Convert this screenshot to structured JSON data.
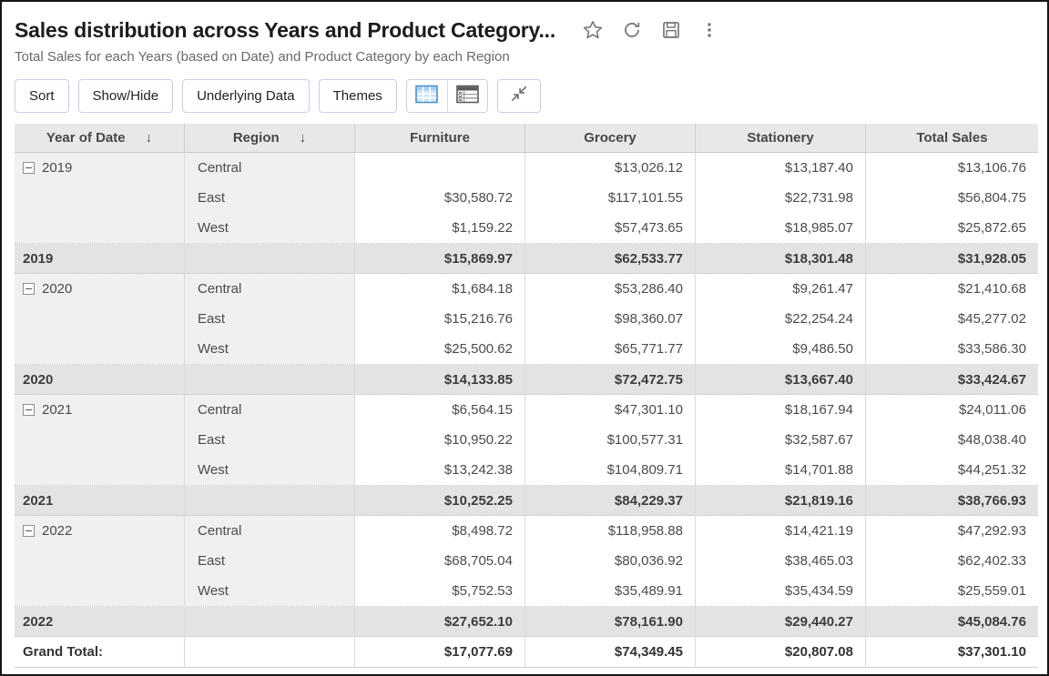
{
  "page": {
    "title": "Sales distribution across Years and Product Category...",
    "subtitle": "Total Sales for each Years (based on Date) and Product Category by each Region"
  },
  "header_icons": [
    {
      "name": "star-icon"
    },
    {
      "name": "refresh-icon"
    },
    {
      "name": "save-icon"
    },
    {
      "name": "more-vertical-icon"
    }
  ],
  "toolbar": {
    "buttons": [
      "Sort",
      "Show/Hide",
      "Underlying Data",
      "Themes"
    ],
    "view_icons": [
      "table-view-icon",
      "tabular-view-icon"
    ],
    "collapse_icon": "collapse-icon"
  },
  "colors": {
    "accent_blue": "#5b9bd3",
    "toolbar_button_border": "#c7cfe9",
    "header_row_bg": "#e8e8e8",
    "subtotal_row_bg": "#e3e3e3",
    "row_label_bg": "#f0f0f0"
  },
  "table": {
    "columns": [
      {
        "label": "Year of Date",
        "sort": "↓"
      },
      {
        "label": "Region",
        "sort": "↓"
      },
      {
        "label": "Furniture"
      },
      {
        "label": "Grocery"
      },
      {
        "label": "Stationery"
      },
      {
        "label": "Total Sales"
      }
    ],
    "collapse_glyph": "minus-box-icon",
    "groups": [
      {
        "year": "2019",
        "regions": [
          "Central",
          "East",
          "West"
        ],
        "furniture": [
          "",
          "$30,580.72",
          "$1,159.22"
        ],
        "grocery": [
          "$13,026.12",
          "$117,101.55",
          "$57,473.65"
        ],
        "stationery": [
          "$13,187.40",
          "$22,731.98",
          "$18,985.07"
        ],
        "total_sales": [
          "$13,106.76",
          "$56,804.75",
          "$25,872.65"
        ],
        "subtotal": {
          "label": "2019",
          "furniture": "$15,869.97",
          "grocery": "$62,533.77",
          "stationery": "$18,301.48",
          "total_sales": "$31,928.05"
        }
      },
      {
        "year": "2020",
        "regions": [
          "Central",
          "East",
          "West"
        ],
        "furniture": [
          "$1,684.18",
          "$15,216.76",
          "$25,500.62"
        ],
        "grocery": [
          "$53,286.40",
          "$98,360.07",
          "$65,771.77"
        ],
        "stationery": [
          "$9,261.47",
          "$22,254.24",
          "$9,486.50"
        ],
        "total_sales": [
          "$21,410.68",
          "$45,277.02",
          "$33,586.30"
        ],
        "subtotal": {
          "label": "2020",
          "furniture": "$14,133.85",
          "grocery": "$72,472.75",
          "stationery": "$13,667.40",
          "total_sales": "$33,424.67"
        }
      },
      {
        "year": "2021",
        "regions": [
          "Central",
          "East",
          "West"
        ],
        "furniture": [
          "$6,564.15",
          "$10,950.22",
          "$13,242.38"
        ],
        "grocery": [
          "$47,301.10",
          "$100,577.31",
          "$104,809.71"
        ],
        "stationery": [
          "$18,167.94",
          "$32,587.67",
          "$14,701.88"
        ],
        "total_sales": [
          "$24,011.06",
          "$48,038.40",
          "$44,251.32"
        ],
        "subtotal": {
          "label": "2021",
          "furniture": "$10,252.25",
          "grocery": "$84,229.37",
          "stationery": "$21,819.16",
          "total_sales": "$38,766.93"
        }
      },
      {
        "year": "2022",
        "regions": [
          "Central",
          "East",
          "West"
        ],
        "furniture": [
          "$8,498.72",
          "$68,705.04",
          "$5,752.53"
        ],
        "grocery": [
          "$118,958.88",
          "$80,036.92",
          "$35,489.91"
        ],
        "stationery": [
          "$14,421.19",
          "$38,465.03",
          "$35,434.59"
        ],
        "total_sales": [
          "$47,292.93",
          "$62,402.33",
          "$25,559.01"
        ],
        "subtotal": {
          "label": "2022",
          "furniture": "$27,652.10",
          "grocery": "$78,161.90",
          "stationery": "$29,440.27",
          "total_sales": "$45,084.76"
        }
      }
    ],
    "grand_total": {
      "label": "Grand Total:",
      "furniture": "$17,077.69",
      "grocery": "$74,349.45",
      "stationery": "$20,807.08",
      "total_sales": "$37,301.10"
    }
  }
}
